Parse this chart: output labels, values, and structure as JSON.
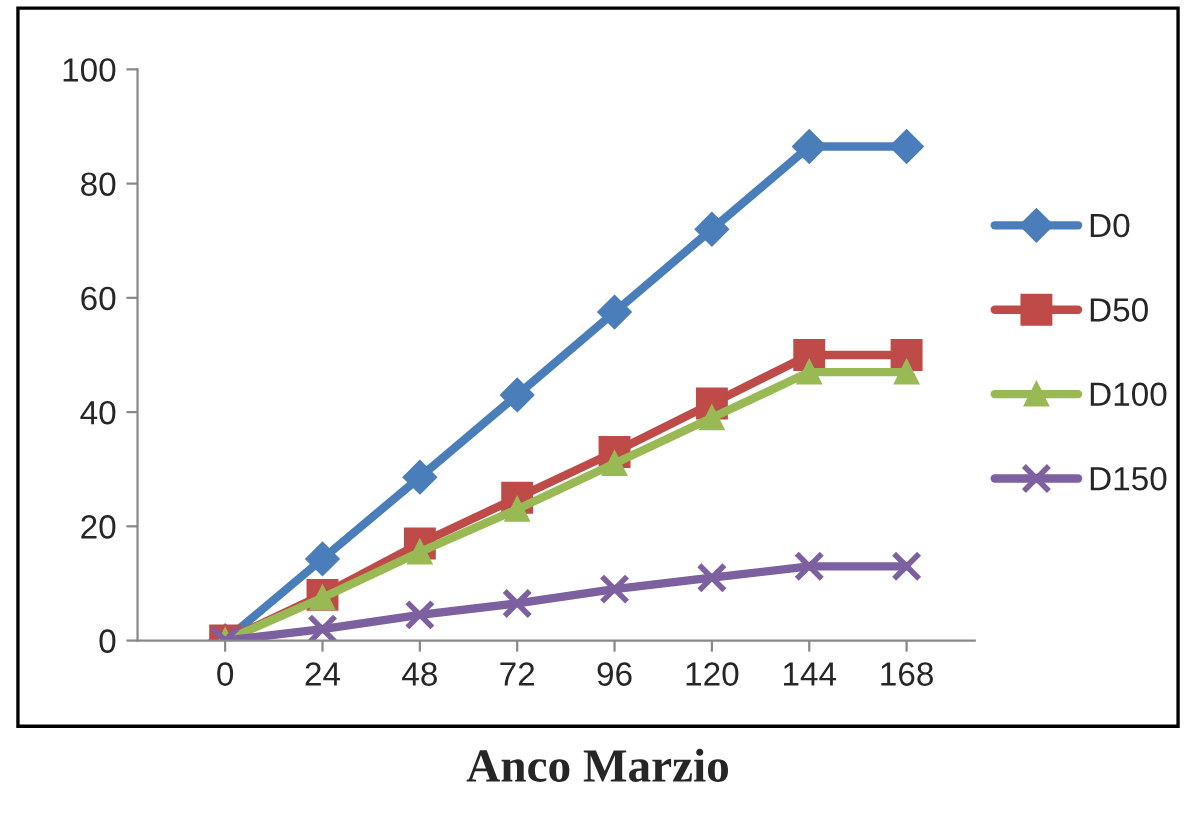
{
  "chart_data": {
    "type": "line",
    "title": "Anco Marzio",
    "categories": [
      "0",
      "24",
      "48",
      "72",
      "96",
      "120",
      "144",
      "168"
    ],
    "series": [
      {
        "name": "D0",
        "color": "#4a7ebb",
        "marker": "diamond",
        "values": [
          0,
          14.3,
          28.6,
          43,
          57.5,
          72,
          86.5,
          86.5
        ]
      },
      {
        "name": "D50",
        "color": "#be4b48",
        "marker": "square",
        "values": [
          0,
          8,
          17,
          25,
          33,
          41.5,
          50,
          50
        ]
      },
      {
        "name": "D100",
        "color": "#98b954",
        "marker": "triangle",
        "values": [
          0,
          7.5,
          15.5,
          23,
          31,
          39,
          47,
          47
        ]
      },
      {
        "name": "D150",
        "color": "#7d60a0",
        "marker": "cross",
        "values": [
          0,
          2,
          4.5,
          6.5,
          9,
          11,
          13,
          13
        ]
      }
    ],
    "ylim": [
      0,
      100
    ],
    "yticks": [
      0,
      20,
      40,
      60,
      80,
      100
    ],
    "grid": false,
    "legend": "right"
  }
}
